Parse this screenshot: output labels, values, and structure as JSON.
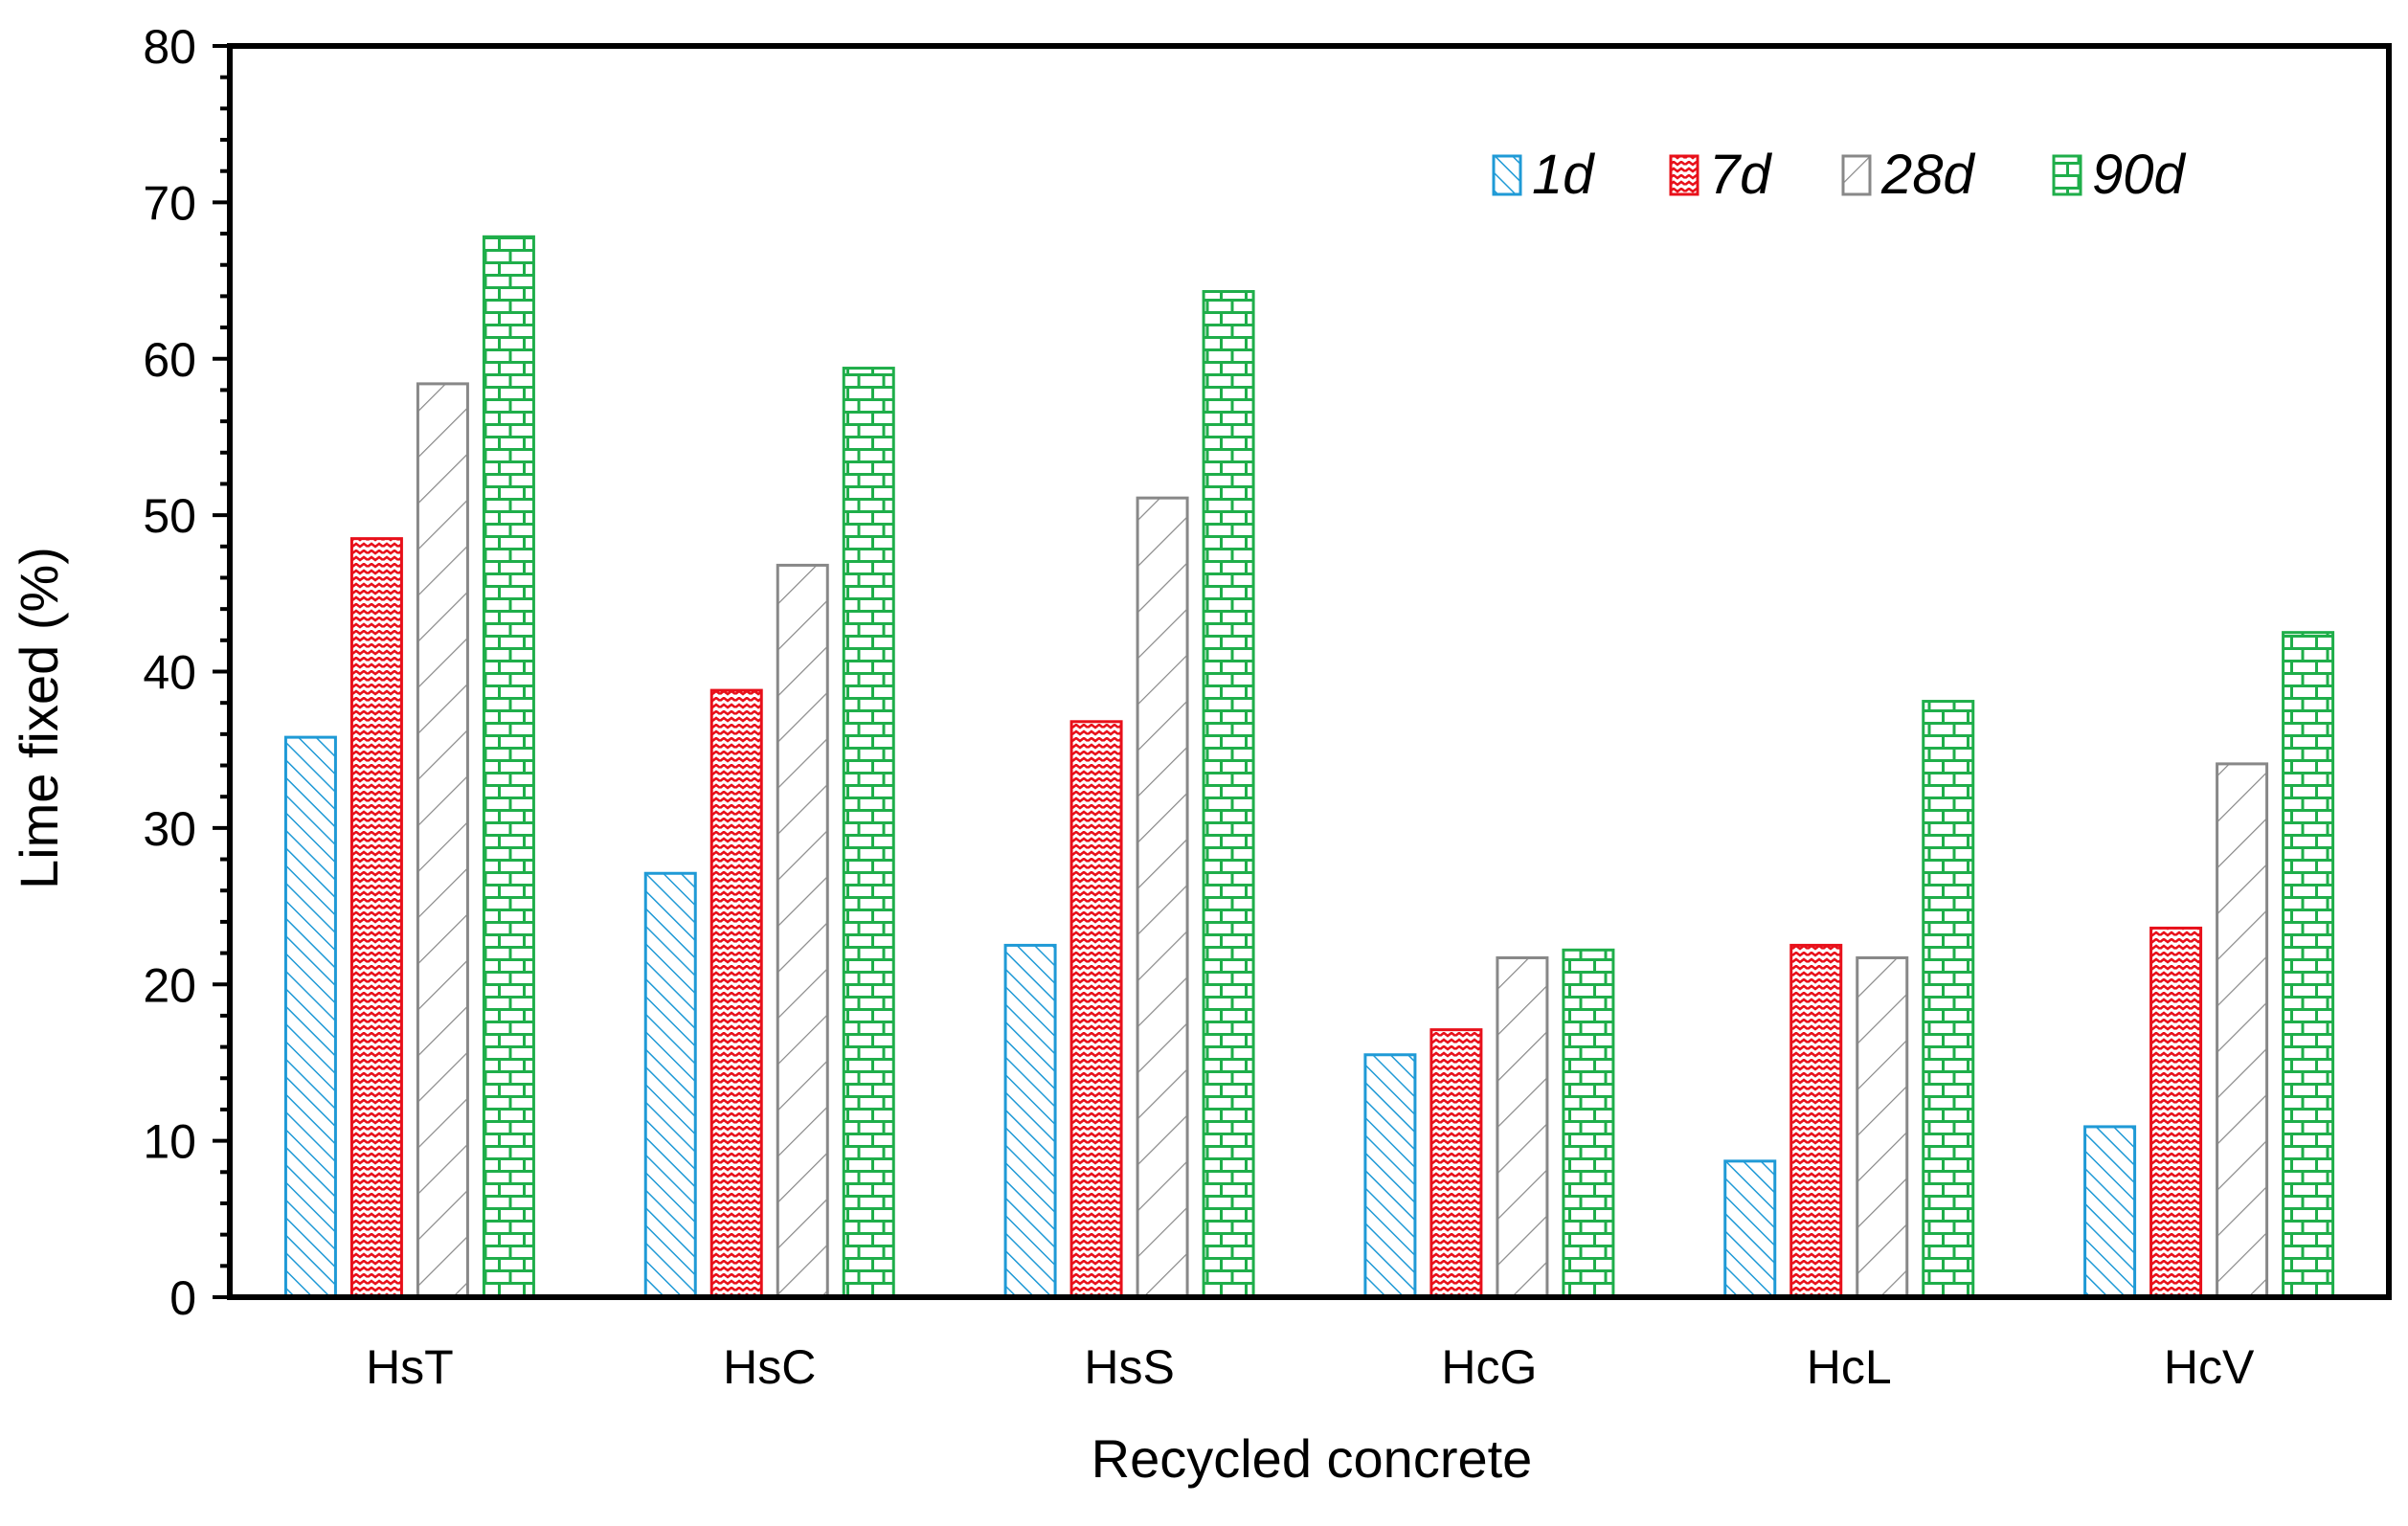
{
  "chart_data": {
    "type": "bar",
    "title": "",
    "xlabel": "Recycled concrete",
    "ylabel": "Lime fixed (%)",
    "ylim": [
      0,
      80
    ],
    "yticks": [
      "0",
      "10",
      "20",
      "30",
      "40",
      "50",
      "60",
      "70",
      "80"
    ],
    "categories": [
      "HsT",
      "HsC",
      "HsS",
      "HcG",
      "HcL",
      "HcV"
    ],
    "grid": false,
    "legend_position": "top-right",
    "series": [
      {
        "name": "1d",
        "color": "#1f9ad6",
        "pattern": "diagonal-down",
        "values": [
          35.8,
          27.1,
          22.5,
          15.5,
          8.7,
          10.9
        ]
      },
      {
        "name": "7d",
        "color": "#e8101a",
        "pattern": "zigzag",
        "values": [
          48.5,
          38.8,
          36.8,
          17.1,
          22.5,
          23.6
        ]
      },
      {
        "name": "28d",
        "color": "#888888",
        "pattern": "diagonal-up",
        "values": [
          58.4,
          46.8,
          51.1,
          21.7,
          21.7,
          34.1
        ]
      },
      {
        "name": "90d",
        "color": "#1fae4a",
        "pattern": "brick",
        "values": [
          67.8,
          59.4,
          64.3,
          22.2,
          38.1,
          42.5
        ]
      }
    ]
  }
}
